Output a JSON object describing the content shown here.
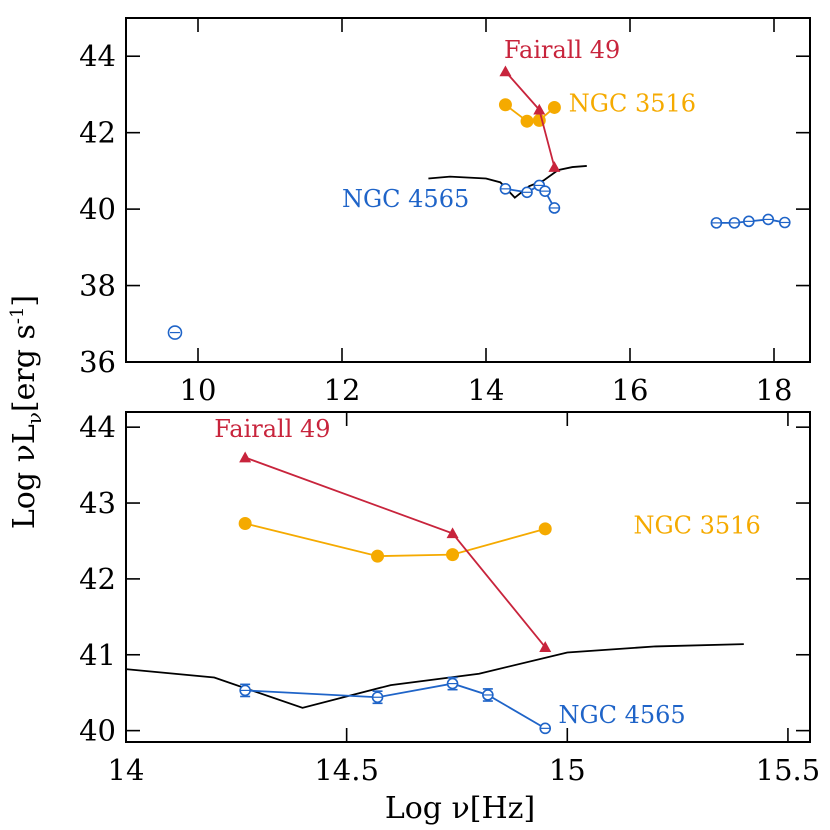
{
  "colors": {
    "fairall": "#c8243c",
    "ngc3516": "#f5aa00",
    "ngc4565": "#1f64c8",
    "template": "#000000"
  },
  "labels": {
    "xlabel_main": "Log ν[Hz]",
    "ylabel_main": "Log νL",
    "ylabel_sub": "ν",
    "ylabel_units": "[erg s",
    "ylabel_exp": "-1",
    "ylabel_close": "]"
  },
  "chart_data": [
    {
      "type": "scatter",
      "panel": "top",
      "xlim": [
        9,
        18.5
      ],
      "ylim": [
        36,
        45
      ],
      "x_ticks": [
        10,
        12,
        14,
        16,
        18
      ],
      "y_ticks": [
        36,
        38,
        40,
        42,
        44
      ],
      "x_tick_labels": [
        "10",
        "12",
        "14",
        "16",
        "18"
      ],
      "y_tick_labels": [
        "36",
        "38",
        "40",
        "42",
        "44"
      ],
      "annotations": [
        {
          "key": "fairall",
          "text": "Fairall 49",
          "x": 14.25,
          "y": 43.95
        },
        {
          "key": "ngc3516",
          "text": "NGC 3516",
          "x": 15.15,
          "y": 42.55
        },
        {
          "key": "ngc4565",
          "text": "NGC 4565",
          "x": 12.0,
          "y": 40.05
        }
      ],
      "series": [
        {
          "key": "template",
          "style": "line",
          "x": [
            13.2,
            13.5,
            13.8,
            14.0,
            14.2,
            14.4,
            14.6,
            14.8,
            15.0,
            15.2,
            15.4
          ],
          "y": [
            40.8,
            40.85,
            40.82,
            40.8,
            40.7,
            40.3,
            40.6,
            40.75,
            41.02,
            41.1,
            41.13
          ]
        },
        {
          "key": "ngc4565",
          "style": "open-circle-line",
          "x": [
            14.27,
            14.57,
            14.74,
            14.82,
            14.95
          ],
          "y": [
            40.53,
            40.44,
            40.62,
            40.47,
            40.03
          ]
        },
        {
          "key": "ngc4565_x",
          "style": "open-circle-line",
          "x": [
            17.2,
            17.45,
            17.65,
            17.92,
            18.15
          ],
          "y": [
            39.64,
            39.64,
            39.68,
            39.73,
            39.65
          ]
        },
        {
          "key": "ngc4565_radio",
          "style": "open-circle",
          "x": [
            9.68
          ],
          "y": [
            36.77
          ]
        },
        {
          "key": "ngc3516",
          "style": "filled-circle-line",
          "x": [
            14.27,
            14.57,
            14.74,
            14.95
          ],
          "y": [
            42.73,
            42.3,
            42.32,
            42.66
          ]
        },
        {
          "key": "fairall",
          "style": "triangle-line",
          "x": [
            14.27,
            14.74,
            14.95
          ],
          "y": [
            43.6,
            42.6,
            41.1
          ]
        }
      ]
    },
    {
      "type": "scatter",
      "panel": "bottom",
      "xlim": [
        14,
        15.55
      ],
      "ylim": [
        39.85,
        44.2
      ],
      "x_ticks": [
        14,
        14.5,
        15,
        15.5
      ],
      "y_ticks": [
        40,
        41,
        42,
        43,
        44
      ],
      "x_tick_labels": [
        "14",
        "14.5",
        "15",
        "15.5"
      ],
      "y_tick_labels": [
        "40",
        "41",
        "42",
        "43",
        "44"
      ],
      "annotations": [
        {
          "key": "fairall",
          "text": "Fairall 49",
          "x": 14.2,
          "y": 43.87
        },
        {
          "key": "ngc3516",
          "text": "NGC 3516",
          "x": 15.15,
          "y": 42.6
        },
        {
          "key": "ngc4565",
          "text": "NGC 4565",
          "x": 14.98,
          "y": 40.1
        }
      ],
      "series": [
        {
          "key": "template",
          "style": "line",
          "x": [
            14.0,
            14.2,
            14.4,
            14.6,
            14.8,
            15.0,
            15.2,
            15.4
          ],
          "y": [
            40.81,
            40.7,
            40.3,
            40.6,
            40.75,
            41.03,
            41.11,
            41.14
          ]
        },
        {
          "key": "ngc4565",
          "style": "open-circle-line",
          "x": [
            14.27,
            14.57,
            14.74,
            14.82,
            14.95
          ],
          "y": [
            40.53,
            40.44,
            40.62,
            40.47,
            40.03
          ],
          "yerr": [
            0.08,
            0.08,
            0.08,
            0.08,
            0.0
          ]
        },
        {
          "key": "ngc3516",
          "style": "filled-circle-line",
          "x": [
            14.27,
            14.57,
            14.74,
            14.95
          ],
          "y": [
            42.73,
            42.3,
            42.32,
            42.66
          ]
        },
        {
          "key": "fairall",
          "style": "triangle-line",
          "x": [
            14.27,
            14.74,
            14.95
          ],
          "y": [
            43.6,
            42.6,
            41.1
          ]
        }
      ]
    }
  ]
}
